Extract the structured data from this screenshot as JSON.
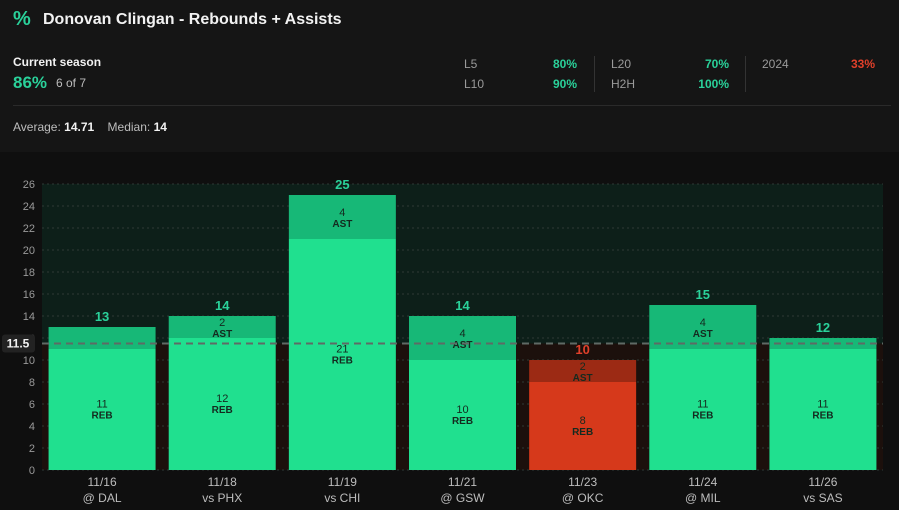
{
  "header": {
    "icon": "percent-icon",
    "title": "Donovan Clingan - Rebounds + Assists"
  },
  "season": {
    "label": "Current season",
    "pct": "86%",
    "count": "6 of 7"
  },
  "splits": [
    {
      "label": "L5",
      "value": "80%",
      "color": "#2ad19a"
    },
    {
      "label": "L10",
      "value": "90%",
      "color": "#2ad19a"
    },
    {
      "label": "L20",
      "value": "70%",
      "color": "#2ad19a"
    },
    {
      "label": "H2H",
      "value": "100%",
      "color": "#2ad19a"
    },
    {
      "label": "2024",
      "value": "33%",
      "color": "#e0402a"
    }
  ],
  "summary": {
    "average_label": "Average:",
    "average_value": "14.71",
    "median_label": "Median:",
    "median_value": "14"
  },
  "colors": {
    "over": "#20e08f",
    "over_top": "#17b877",
    "under": "#d6391b",
    "under_top": "#9c2a14",
    "over_text": "#2ad19a",
    "under_text": "#e0402a"
  },
  "chart_data": {
    "type": "bar",
    "stacked": true,
    "line": 11.5,
    "line_label": "11.5",
    "ylim": [
      0,
      26
    ],
    "yticks": [
      0,
      2,
      4,
      6,
      8,
      10,
      12,
      14,
      16,
      18,
      20,
      22,
      24,
      26
    ],
    "grid": true,
    "categories": [
      {
        "date": "11/16",
        "opp": "@ DAL"
      },
      {
        "date": "11/18",
        "opp": "vs PHX"
      },
      {
        "date": "11/19",
        "opp": "vs CHI"
      },
      {
        "date": "11/21",
        "opp": "@ GSW"
      },
      {
        "date": "11/23",
        "opp": "@ OKC"
      },
      {
        "date": "11/24",
        "opp": "@ MIL"
      },
      {
        "date": "11/26",
        "opp": "vs SAS"
      }
    ],
    "series": [
      {
        "name": "REB",
        "values": [
          11,
          12,
          21,
          10,
          8,
          11,
          11
        ]
      },
      {
        "name": "AST",
        "values": [
          2,
          2,
          4,
          4,
          2,
          4,
          1
        ]
      }
    ],
    "totals": [
      13,
      14,
      25,
      14,
      10,
      15,
      12
    ],
    "segment_labels_shown": [
      {
        "REB": true,
        "AST": false
      },
      {
        "REB": true,
        "AST": true
      },
      {
        "REB": true,
        "AST": true
      },
      {
        "REB": true,
        "AST": true
      },
      {
        "REB": true,
        "AST": true
      },
      {
        "REB": true,
        "AST": true
      },
      {
        "REB": true,
        "AST": false
      }
    ]
  }
}
